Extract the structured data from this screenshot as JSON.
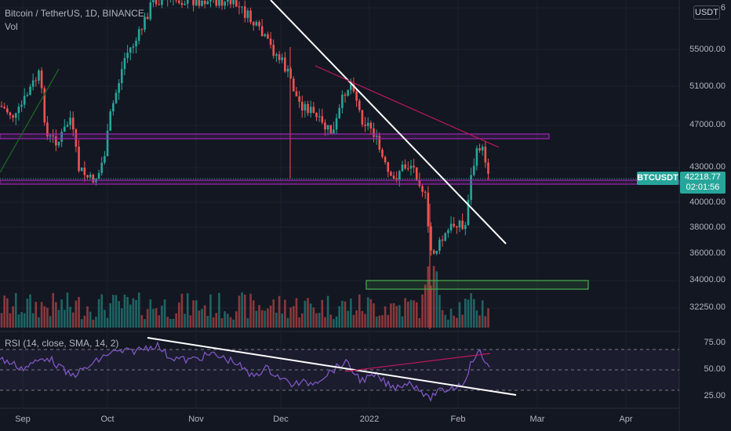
{
  "legend": {
    "symbol": "Bitcoin / TetherUS, 1D, BINANCE",
    "vol": "Vol",
    "rsi": "RSI (14, close, SMA, 14, 2)"
  },
  "currency_badge": "USDT",
  "last_price": {
    "symbol": "BTCUSDT",
    "price": "42218.77",
    "countdown": "02:01:56"
  },
  "y_axis_labels": [
    "6",
    "55000.00",
    "51000.00",
    "47000.00",
    "43000.00",
    "40000.00",
    "38000.00",
    "36000.00",
    "34000.00",
    "32250.00"
  ],
  "rsi_axis_labels": [
    "75.00",
    "50.00",
    "25.00"
  ],
  "x_axis_labels": [
    "Sep",
    "Oct",
    "Nov",
    "Dec",
    "2022",
    "Feb",
    "Mar",
    "Apr"
  ],
  "colors": {
    "background": "#131722",
    "up": "#26a69a",
    "down": "#ef5350",
    "trendline": "#ffffff",
    "zone": "#9c27b0",
    "support_zone": "#4caf50",
    "rsi_line": "#7e57c2"
  }
}
